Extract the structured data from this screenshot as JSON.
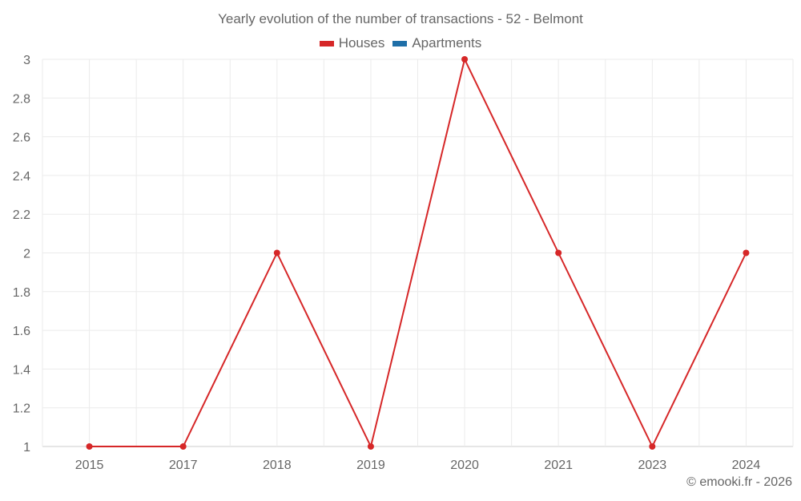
{
  "chart_data": {
    "type": "line",
    "title": "Yearly evolution of the number of transactions - 52 - Belmont",
    "categories": [
      "2015",
      "2017",
      "2018",
      "2019",
      "2020",
      "2021",
      "2023",
      "2024"
    ],
    "series": [
      {
        "name": "Houses",
        "color": "#d62728",
        "values": [
          1,
          1,
          2,
          1,
          3,
          2,
          1,
          2
        ]
      },
      {
        "name": "Apartments",
        "color": "#1f6fa8",
        "values": []
      }
    ],
    "yticks": [
      "1",
      "1.2",
      "1.4",
      "1.6",
      "1.8",
      "2",
      "2.2",
      "2.4",
      "2.6",
      "2.8",
      "3"
    ],
    "ylim": [
      1,
      3
    ],
    "xlabel": "",
    "ylabel": "",
    "grid": true,
    "legend_position": "top"
  },
  "legend": {
    "items": [
      {
        "label": "Houses",
        "color": "#d62728"
      },
      {
        "label": "Apartments",
        "color": "#1f6fa8"
      }
    ]
  },
  "credit": "© emooki.fr - 2026"
}
